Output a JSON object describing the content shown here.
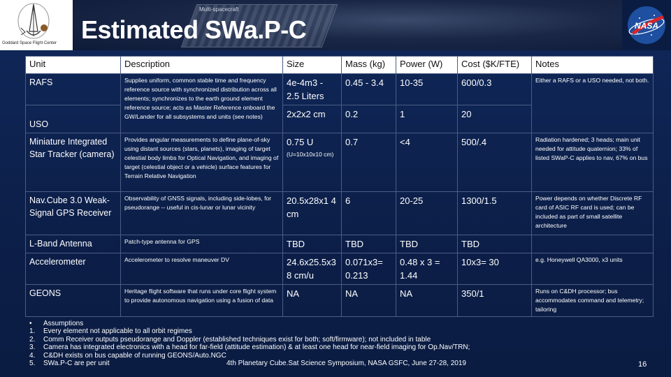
{
  "header": {
    "title": "Estimated SWa.P-C",
    "org_caption": "Goddard Space Flight Center",
    "nasa_logo_text": "NASA",
    "background_image_label": "Multi-spacecraft"
  },
  "table": {
    "columns": [
      "Unit",
      "Description",
      "Size",
      "Mass (kg)",
      "Power (W)",
      "Cost ($K/FTE)",
      "Notes"
    ],
    "rows": {
      "rafs": {
        "unit": "RAFS",
        "size": "4e-4m3 - 2.5 Liters",
        "mass": "0.45 - 3.4",
        "power": "10-35",
        "cost": "600/0.3"
      },
      "uso": {
        "unit": "USO",
        "size": "2x2x2 cm",
        "mass": "0.2",
        "power": "1",
        "cost": "20"
      },
      "rafs_uso_desc": "Supplies uniform, common stable time and frequency reference source with synchronized distribution across all elements; synchronizes to the earth ground element reference source; acts as Master Reference onboard the GW/Lander for all subsystems and units (see notes)",
      "rafs_uso_note": "Either a RAFS or a USO needed, not both.",
      "star": {
        "unit": "Miniature Integrated Star Tracker (camera)",
        "desc": "Provides angular measurements to define plane-of-sky using distant sources (stars, planets), imaging of target celestial body limbs for Optical Navigation, and imaging of target (celestial object or a vehicle) surface features for Terrain Relative Navigation",
        "size": "0.75 U",
        "size_sub": "(U=10x10x10 cm)",
        "mass": "0.7",
        "power": "<4",
        "cost": "500/.4",
        "note": "Radiation hardened; 3 heads; main unit needed for attitude quaternion; 33% of listed SWaP-C applies to nav, 67% on bus"
      },
      "navcube": {
        "unit": "Nav.Cube 3.0 Weak-Signal GPS Receiver",
        "desc": "Observability of GNSS signals, including side-lobes, for pseudorange -- useful in cis-lunar or lunar vicinity",
        "size": "20.5x28x1 4 cm",
        "mass": "6",
        "power": "20-25",
        "cost": "1300/1.5",
        "note": "Power depends on whether Discrete RF card of ASIC RF card is used; can be included as part of small satellite architecture"
      },
      "lband": {
        "unit": "L-Band Antenna",
        "desc": "Patch-type antenna for GPS",
        "size": "TBD",
        "mass": "TBD",
        "power": "TBD",
        "cost": "TBD",
        "note": ""
      },
      "accel": {
        "unit": "Accelerometer",
        "desc": "Accelerometer to resolve maneuver DV",
        "size": "24.6x25.5x3 8 cm/u",
        "mass": "0.071x3= 0.213",
        "power": "0.48 x 3 = 1.44",
        "cost": "10x3= 30",
        "note": "e.g. Honeywell QA3000, x3 units"
      },
      "geons": {
        "unit": "GEONS",
        "desc": "Heritage flight software that runs under core flight system to provide autonomous navigation using a fusion of data",
        "size": "NA",
        "mass": "NA",
        "power": "NA",
        "cost": "350/1",
        "note": "Runs on C&DH processor; bus accommodates command and telemetry; tailoring"
      }
    }
  },
  "footnotes": [
    {
      "marker": "•",
      "text": "Assumptions"
    },
    {
      "marker": "1.",
      "text": "Every element not applicable to all orbit regimes"
    },
    {
      "marker": "2.",
      "text": "Comm Receiver outputs pseudorange and Doppler (established techniques exist for both; soft/firmware); not included in table"
    },
    {
      "marker": "3.",
      "text": "Camera has integrated electronics with a head for far-field (attitude estimation) & at least one head for near-field imaging for Op.Nav/TRN;"
    },
    {
      "marker": "4.",
      "text": "C&DH exists on bus capable of running GEONS/Auto.NGC"
    },
    {
      "marker": "5.",
      "text": "SWa.P-C are per unit"
    }
  ],
  "footer": {
    "conference": "4th Planetary Cube.Sat Science Symposium, NASA GSFC, June 27-28, 2019",
    "page_number": "16"
  }
}
